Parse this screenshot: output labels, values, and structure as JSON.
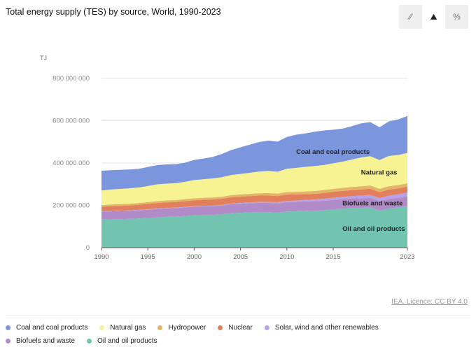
{
  "header": {
    "title": "Total energy supply (TES) by source, World, 1990-2023",
    "view_buttons": [
      {
        "icon": "line-chart-icon",
        "glyph": "⁄⁄",
        "active": false
      },
      {
        "icon": "area-chart-icon",
        "glyph": "⛰",
        "active": true
      },
      {
        "icon": "percent-icon",
        "glyph": "%",
        "active": false
      }
    ]
  },
  "credit": "IEA. Licence: CC BY 4.0",
  "chart_data": {
    "type": "area",
    "stacked": true,
    "title": "Total energy supply (TES) by source, World, 1990-2023",
    "ylabel": "TJ",
    "ylim": [
      0,
      800000000
    ],
    "yticks": [
      {
        "v": 0,
        "label": "0"
      },
      {
        "v": 200000000,
        "label": "200 000 000"
      },
      {
        "v": 400000000,
        "label": "400 000 000"
      },
      {
        "v": 600000000,
        "label": "600 000 000"
      },
      {
        "v": 800000000,
        "label": "800 000 000"
      }
    ],
    "xticks": [
      {
        "v": 1990,
        "label": "1990"
      },
      {
        "v": 1995,
        "label": "1995"
      },
      {
        "v": 2000,
        "label": "2000"
      },
      {
        "v": 2005,
        "label": "2005"
      },
      {
        "v": 2010,
        "label": "2010"
      },
      {
        "v": 2015,
        "label": "2015"
      },
      {
        "v": 2023,
        "label": "2023"
      }
    ],
    "x_start": 1990,
    "unit_scale": 1000000,
    "series": [
      {
        "name": "Oil and oil products",
        "color": "#72c3b0",
        "label": "Oil and oil products",
        "values": [
          133,
          134,
          135,
          136,
          138,
          140,
          143,
          146,
          147,
          150,
          153,
          154,
          155,
          158,
          163,
          165,
          167,
          169,
          168,
          166,
          171,
          172,
          174,
          175,
          177,
          181,
          184,
          187,
          188,
          190,
          175,
          185,
          190,
          196
        ]
      },
      {
        "name": "Biofuels and waste",
        "color": "#b08bc8",
        "label": "Biofuels and waste",
        "values": [
          37,
          37.5,
          38,
          38.5,
          39,
          39.5,
          40,
          40,
          40,
          40.5,
          40.5,
          41,
          41,
          41.5,
          42,
          42.5,
          43,
          43,
          43.5,
          43.5,
          44,
          44,
          44.5,
          44.5,
          45,
          45,
          45,
          45.5,
          45.5,
          46,
          45,
          45.5,
          45.5,
          46
        ]
      },
      {
        "name": "Solar, wind and other renewables",
        "color": "#b7a2ea",
        "values": [
          1.5,
          1.6,
          1.7,
          1.8,
          1.9,
          2,
          2.1,
          2.2,
          2.3,
          2.4,
          2.5,
          2.6,
          2.8,
          3,
          3.2,
          3.5,
          3.8,
          4.2,
          4.7,
          5.2,
          5.8,
          6.5,
          7.2,
          8,
          8.8,
          9.6,
          10.5,
          11.5,
          12.5,
          13.5,
          14.5,
          15.5,
          16.5,
          18
        ]
      },
      {
        "name": "Nuclear",
        "color": "#e2805e",
        "values": [
          22,
          23,
          23,
          23,
          24,
          25,
          26,
          26,
          26,
          27,
          28,
          29,
          29,
          29,
          30,
          30,
          30,
          30,
          30,
          29.5,
          30,
          29,
          27,
          27,
          28,
          28,
          28.5,
          28.5,
          29,
          29.5,
          28,
          29,
          28,
          29
        ]
      },
      {
        "name": "Hydropower",
        "color": "#e3b566",
        "values": [
          7.7,
          7.9,
          8,
          8.3,
          8.4,
          8.9,
          9,
          9.2,
          9.3,
          9.4,
          9.5,
          9.4,
          9.6,
          9.6,
          10.1,
          10.5,
          10.9,
          11.1,
          11.5,
          11.6,
          12.4,
          12.5,
          13,
          13.3,
          13.9,
          14,
          14.3,
          14.6,
          15.1,
          15.3,
          15.7,
          15.6,
          15.8,
          15.5
        ]
      },
      {
        "name": "Natural gas",
        "color": "#f7f392",
        "label": "Natural gas",
        "values": [
          69,
          71,
          72,
          73,
          73,
          76,
          79,
          79,
          80,
          82,
          86,
          87,
          90,
          92,
          95,
          97,
          99,
          102,
          105,
          103,
          110,
          113,
          116,
          118,
          118,
          121,
          124,
          129,
          136,
          138,
          136,
          143,
          142,
          143
        ]
      },
      {
        "name": "Coal and coal products",
        "color": "#7c96de",
        "label": "Coal and coal products",
        "values": [
          93,
          91,
          90,
          89,
          88,
          90,
          91,
          91,
          90,
          90,
          95,
          98,
          101,
          110,
          118,
          126,
          133,
          140,
          143,
          142,
          150,
          157,
          158,
          162,
          163,
          159,
          156,
          158,
          161,
          161,
          155,
          163,
          168,
          175
        ]
      }
    ],
    "legend_order": [
      "Coal and coal products",
      "Natural gas",
      "Hydropower",
      "Nuclear",
      "Solar, wind and other renewables",
      "Biofuels and waste",
      "Oil and oil products"
    ],
    "legend_placement": "bottom",
    "grid": true
  }
}
